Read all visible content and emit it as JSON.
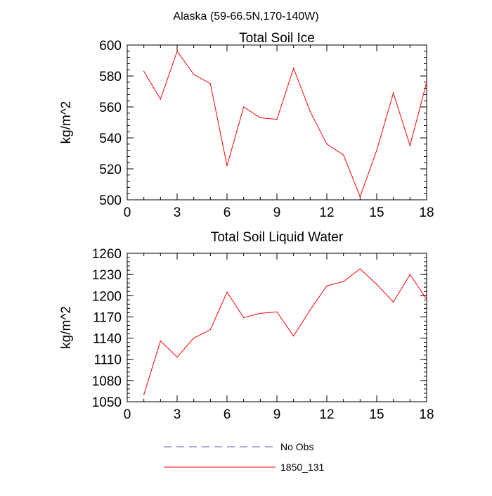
{
  "main_title": "Alaska (59-66.5N,170-140W)",
  "chart_data": [
    {
      "type": "line",
      "title": "Total Soil Ice",
      "xlabel": "",
      "ylabel": "kg/m^2",
      "xlim": [
        0,
        18
      ],
      "ylim": [
        500,
        600
      ],
      "x_ticks": [
        0,
        3,
        6,
        9,
        12,
        15,
        18
      ],
      "x_tick_labels": [
        "0",
        "3",
        "6",
        "9",
        "12",
        "15",
        "18"
      ],
      "y_ticks": [
        500,
        520,
        540,
        560,
        580,
        600
      ],
      "y_tick_labels": [
        "500",
        "520",
        "540",
        "560",
        "580",
        "600"
      ],
      "grid": false,
      "series": [
        {
          "name": "1850_131",
          "color": "#ff0000",
          "x": [
            1,
            2,
            3,
            4,
            5,
            6,
            7,
            8,
            9,
            10,
            11,
            12,
            13,
            14,
            15,
            16,
            17,
            18
          ],
          "values": [
            583,
            565,
            596,
            581,
            575,
            522,
            560,
            553,
            552,
            585,
            557,
            536,
            529,
            502,
            532,
            569,
            535,
            576
          ]
        }
      ]
    },
    {
      "type": "line",
      "title": "Total Soil Liquid Water",
      "xlabel": "",
      "ylabel": "kg/m^2",
      "xlim": [
        0,
        18
      ],
      "ylim": [
        1050,
        1260
      ],
      "x_ticks": [
        0,
        3,
        6,
        9,
        12,
        15,
        18
      ],
      "x_tick_labels": [
        "0",
        "3",
        "6",
        "9",
        "12",
        "15",
        "18"
      ],
      "y_ticks": [
        1050,
        1080,
        1110,
        1140,
        1170,
        1200,
        1230,
        1260
      ],
      "y_tick_labels": [
        "1050",
        "1080",
        "1110",
        "1140",
        "1170",
        "1200",
        "1230",
        "1260"
      ],
      "grid": false,
      "series": [
        {
          "name": "1850_131",
          "color": "#ff0000",
          "x": [
            1,
            2,
            3,
            4,
            5,
            6,
            7,
            8,
            9,
            10,
            11,
            12,
            13,
            14,
            15,
            16,
            17,
            18
          ],
          "values": [
            1060,
            1136,
            1113,
            1140,
            1152,
            1205,
            1169,
            1175,
            1177,
            1143,
            1180,
            1214,
            1220,
            1238,
            1216,
            1191,
            1230,
            1195
          ]
        }
      ]
    }
  ],
  "legend": {
    "placement": "bottom-center",
    "items": [
      {
        "label": "No Obs",
        "color": "#5a5aa8",
        "dash": "dashed"
      },
      {
        "label": "1850_131",
        "color": "#ff0000",
        "dash": "solid"
      }
    ]
  }
}
